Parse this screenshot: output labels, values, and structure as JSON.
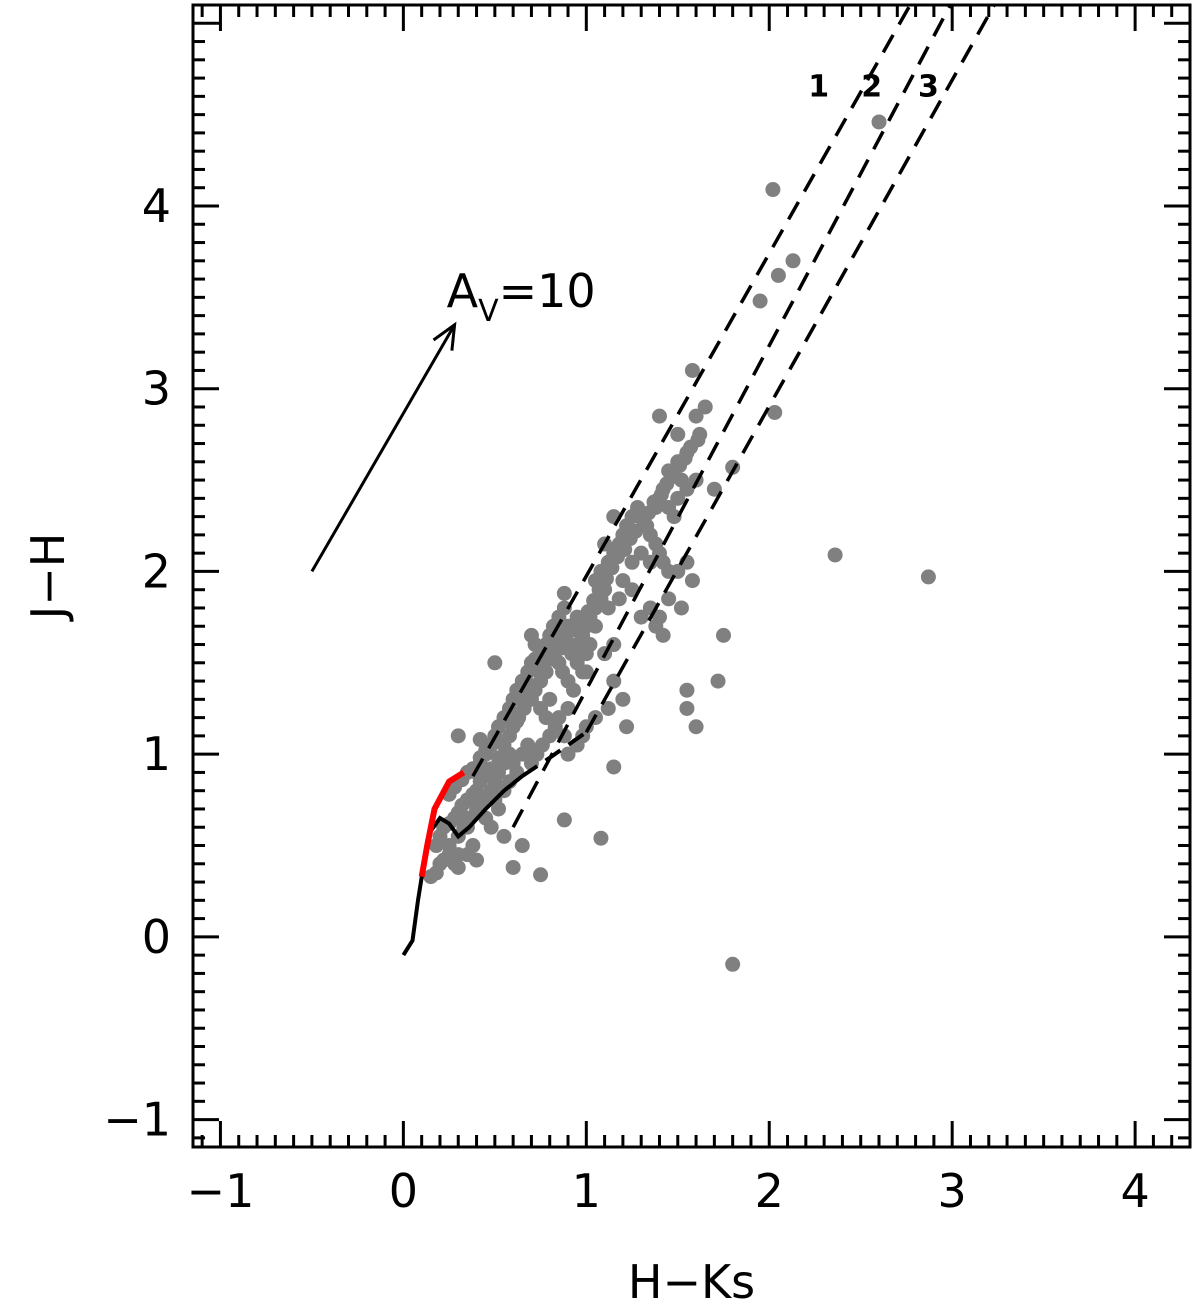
{
  "chart_data": {
    "type": "scatter",
    "title": "",
    "xlabel": "H−Ks",
    "ylabel": "J−H",
    "xlim": [
      -1.15,
      4.3
    ],
    "ylim": [
      -1.15,
      5.1
    ],
    "x_ticks": [
      -1,
      0,
      1,
      2,
      3,
      4
    ],
    "x_tick_labels": [
      "−1",
      "0",
      "1",
      "2",
      "3",
      "4"
    ],
    "y_ticks": [
      -1,
      0,
      1,
      2,
      3,
      4
    ],
    "y_tick_labels": [
      "−1",
      "0",
      "1",
      "2",
      "3",
      "4"
    ],
    "grid": false,
    "marker_color": "#808080",
    "points": [
      [
        0.15,
        0.33
      ],
      [
        0.18,
        0.35
      ],
      [
        0.2,
        0.4
      ],
      [
        0.22,
        0.42
      ],
      [
        0.25,
        0.45
      ],
      [
        0.28,
        0.4
      ],
      [
        0.3,
        0.38
      ],
      [
        0.18,
        0.5
      ],
      [
        0.2,
        0.55
      ],
      [
        0.22,
        0.6
      ],
      [
        0.25,
        0.62
      ],
      [
        0.28,
        0.65
      ],
      [
        0.3,
        0.68
      ],
      [
        0.32,
        0.72
      ],
      [
        0.35,
        0.75
      ],
      [
        0.38,
        0.78
      ],
      [
        0.4,
        0.8
      ],
      [
        0.42,
        0.85
      ],
      [
        0.45,
        0.88
      ],
      [
        0.3,
        0.55
      ],
      [
        0.33,
        0.6
      ],
      [
        0.36,
        0.65
      ],
      [
        0.4,
        0.7
      ],
      [
        0.43,
        0.73
      ],
      [
        0.46,
        0.76
      ],
      [
        0.48,
        0.8
      ],
      [
        0.5,
        0.85
      ],
      [
        0.52,
        0.9
      ],
      [
        0.55,
        0.95
      ],
      [
        0.4,
        0.9
      ],
      [
        0.42,
        0.95
      ],
      [
        0.45,
        1.0
      ],
      [
        0.48,
        1.05
      ],
      [
        0.5,
        1.1
      ],
      [
        0.52,
        1.15
      ],
      [
        0.55,
        1.2
      ],
      [
        0.58,
        1.25
      ],
      [
        0.6,
        1.3
      ],
      [
        0.62,
        1.35
      ],
      [
        0.65,
        1.4
      ],
      [
        0.68,
        1.45
      ],
      [
        0.7,
        1.5
      ],
      [
        0.72,
        1.52
      ],
      [
        0.75,
        1.55
      ],
      [
        0.78,
        1.6
      ],
      [
        0.8,
        1.65
      ],
      [
        0.82,
        1.7
      ],
      [
        0.85,
        1.75
      ],
      [
        0.88,
        1.8
      ],
      [
        0.9,
        1.7
      ],
      [
        0.55,
        1.05
      ],
      [
        0.58,
        1.1
      ],
      [
        0.6,
        1.15
      ],
      [
        0.63,
        1.2
      ],
      [
        0.66,
        1.25
      ],
      [
        0.7,
        1.3
      ],
      [
        0.72,
        1.35
      ],
      [
        0.75,
        1.25
      ],
      [
        0.78,
        1.2
      ],
      [
        0.8,
        1.3
      ],
      [
        0.65,
        1.0
      ],
      [
        0.68,
        1.05
      ],
      [
        0.7,
        0.95
      ],
      [
        0.73,
        1.0
      ],
      [
        0.76,
        1.05
      ],
      [
        0.8,
        1.1
      ],
      [
        0.83,
        1.15
      ],
      [
        0.85,
        1.2
      ],
      [
        0.88,
        1.1
      ],
      [
        0.9,
        1.25
      ],
      [
        0.6,
        0.95
      ],
      [
        0.62,
        0.9
      ],
      [
        0.5,
        0.75
      ],
      [
        0.52,
        0.7
      ],
      [
        0.55,
        0.8
      ],
      [
        0.58,
        0.85
      ],
      [
        0.45,
        0.65
      ],
      [
        0.48,
        0.6
      ],
      [
        0.38,
        0.5
      ],
      [
        0.35,
        0.45
      ],
      [
        0.92,
        1.55
      ],
      [
        0.95,
        1.6
      ],
      [
        0.98,
        1.65
      ],
      [
        1.0,
        1.7
      ],
      [
        1.02,
        1.75
      ],
      [
        1.05,
        1.8
      ],
      [
        1.08,
        1.85
      ],
      [
        1.1,
        1.9
      ],
      [
        0.95,
        1.5
      ],
      [
        0.98,
        1.45
      ],
      [
        1.0,
        1.55
      ],
      [
        1.02,
        1.6
      ],
      [
        0.85,
        1.5
      ],
      [
        0.87,
        1.45
      ],
      [
        0.9,
        1.4
      ],
      [
        0.93,
        1.35
      ],
      [
        0.75,
        1.4
      ],
      [
        0.78,
        1.45
      ],
      [
        0.72,
        1.6
      ],
      [
        0.7,
        1.65
      ],
      [
        0.88,
        1.88
      ],
      [
        0.8,
        1.6
      ],
      [
        0.85,
        1.65
      ],
      [
        0.95,
        1.75
      ],
      [
        1.05,
        1.95
      ],
      [
        1.08,
        2.0
      ],
      [
        1.12,
        2.05
      ],
      [
        1.15,
        2.1
      ],
      [
        1.18,
        2.15
      ],
      [
        1.2,
        2.2
      ],
      [
        1.22,
        2.25
      ],
      [
        1.25,
        2.3
      ],
      [
        1.28,
        2.35
      ],
      [
        1.3,
        2.3
      ],
      [
        1.33,
        2.25
      ],
      [
        1.35,
        2.2
      ],
      [
        1.38,
        2.15
      ],
      [
        1.4,
        2.1
      ],
      [
        1.42,
        2.05
      ],
      [
        1.45,
        2.0
      ],
      [
        1.1,
        2.15
      ],
      [
        1.15,
        2.3
      ],
      [
        1.25,
        2.05
      ],
      [
        1.3,
        2.1
      ],
      [
        1.35,
        2.05
      ],
      [
        1.2,
        1.95
      ],
      [
        1.25,
        1.9
      ],
      [
        1.18,
        1.85
      ],
      [
        1.12,
        1.8
      ],
      [
        1.05,
        1.7
      ],
      [
        1.45,
        2.35
      ],
      [
        1.5,
        2.4
      ],
      [
        1.52,
        2.5
      ],
      [
        1.55,
        2.45
      ],
      [
        1.48,
        2.3
      ],
      [
        1.42,
        2.45
      ],
      [
        1.4,
        2.4
      ],
      [
        1.38,
        2.35
      ],
      [
        1.45,
        2.55
      ],
      [
        1.5,
        2.6
      ],
      [
        1.4,
        2.85
      ],
      [
        1.5,
        2.75
      ],
      [
        1.6,
        2.85
      ],
      [
        1.65,
        2.9
      ],
      [
        1.62,
        2.75
      ],
      [
        1.55,
        2.65
      ],
      [
        1.6,
        2.5
      ],
      [
        1.7,
        2.45
      ],
      [
        1.45,
        1.85
      ],
      [
        1.5,
        2.0
      ],
      [
        1.55,
        2.05
      ],
      [
        1.58,
        1.95
      ],
      [
        1.52,
        1.8
      ],
      [
        1.4,
        1.75
      ],
      [
        1.38,
        1.7
      ],
      [
        1.35,
        1.8
      ],
      [
        1.3,
        1.75
      ],
      [
        1.15,
        1.6
      ],
      [
        1.1,
        1.55
      ],
      [
        1.0,
        1.45
      ],
      [
        1.42,
        1.65
      ],
      [
        1.15,
        1.4
      ],
      [
        1.2,
        1.3
      ],
      [
        1.12,
        1.25
      ],
      [
        1.05,
        1.2
      ],
      [
        1.0,
        1.15
      ],
      [
        0.98,
        1.1
      ],
      [
        0.95,
        1.05
      ],
      [
        0.9,
        1.0
      ],
      [
        1.22,
        1.15
      ],
      [
        1.55,
        1.35
      ],
      [
        1.55,
        1.25
      ],
      [
        1.6,
        1.15
      ],
      [
        1.72,
        1.4
      ],
      [
        1.75,
        1.65
      ],
      [
        1.58,
        3.1
      ],
      [
        1.8,
        2.57
      ],
      [
        1.95,
        3.48
      ],
      [
        2.05,
        3.62
      ],
      [
        2.13,
        3.7
      ],
      [
        2.02,
        4.09
      ],
      [
        2.6,
        4.46
      ],
      [
        2.03,
        2.87
      ],
      [
        2.36,
        2.09
      ],
      [
        2.87,
        1.97
      ],
      [
        1.8,
        -0.15
      ],
      [
        1.08,
        0.54
      ],
      [
        0.88,
        0.64
      ],
      [
        0.75,
        0.34
      ],
      [
        1.15,
        0.93
      ],
      [
        0.42,
        1.08
      ],
      [
        0.5,
        1.5
      ],
      [
        0.3,
        1.1
      ],
      [
        0.6,
        0.38
      ],
      [
        0.65,
        0.5
      ],
      [
        0.55,
        0.55
      ],
      [
        0.4,
        0.42
      ],
      [
        0.3,
        0.45
      ],
      [
        0.25,
        0.5
      ],
      [
        0.35,
        0.6
      ],
      [
        0.25,
        0.78
      ],
      [
        0.28,
        0.82
      ],
      [
        0.32,
        0.86
      ],
      [
        0.35,
        0.9
      ],
      [
        0.38,
        0.92
      ],
      [
        0.42,
        0.98
      ],
      [
        0.45,
        1.02
      ],
      [
        0.48,
        0.92
      ],
      [
        0.52,
        0.98
      ],
      [
        0.58,
        1.0
      ],
      [
        0.62,
        1.18
      ],
      [
        0.66,
        1.32
      ],
      [
        0.69,
        1.38
      ],
      [
        0.73,
        1.46
      ],
      [
        0.76,
        1.5
      ],
      [
        0.79,
        1.56
      ],
      [
        0.82,
        1.52
      ],
      [
        0.86,
        1.58
      ],
      [
        0.89,
        1.62
      ],
      [
        0.93,
        1.68
      ],
      [
        0.97,
        1.72
      ],
      [
        1.01,
        1.78
      ],
      [
        1.04,
        1.84
      ],
      [
        1.07,
        1.9
      ],
      [
        1.11,
        1.96
      ],
      [
        1.14,
        2.02
      ],
      [
        1.17,
        2.08
      ],
      [
        1.21,
        2.12
      ],
      [
        1.24,
        2.18
      ],
      [
        1.27,
        2.22
      ],
      [
        1.31,
        2.28
      ],
      [
        1.34,
        2.32
      ],
      [
        1.37,
        2.38
      ],
      [
        1.41,
        2.42
      ],
      [
        1.44,
        2.48
      ],
      [
        1.47,
        2.52
      ],
      [
        1.51,
        2.58
      ],
      [
        1.54,
        2.62
      ],
      [
        1.57,
        2.68
      ],
      [
        1.61,
        2.72
      ]
    ],
    "red_locus": [
      [
        0.1,
        0.33
      ],
      [
        0.13,
        0.5
      ],
      [
        0.17,
        0.7
      ],
      [
        0.25,
        0.85
      ],
      [
        0.33,
        0.9
      ]
    ],
    "black_locus": [
      [
        0.0,
        -0.1
      ],
      [
        0.05,
        -0.02
      ],
      [
        0.08,
        0.2
      ],
      [
        0.12,
        0.45
      ],
      [
        0.15,
        0.58
      ],
      [
        0.2,
        0.65
      ],
      [
        0.25,
        0.62
      ],
      [
        0.3,
        0.55
      ],
      [
        0.36,
        0.6
      ],
      [
        0.45,
        0.7
      ],
      [
        0.55,
        0.8
      ],
      [
        0.65,
        0.88
      ]
    ],
    "dashed_locus": [
      [
        0.65,
        0.88
      ],
      [
        0.8,
        0.98
      ],
      [
        1.0,
        1.12
      ]
    ],
    "reddening_bands": [
      {
        "label": "1",
        "x0": 0.38,
        "y0": 0.88,
        "x1": 2.77,
        "y1": 5.1
      },
      {
        "label": "2",
        "x0": 0.6,
        "y0": 0.6,
        "x1": 2.99,
        "y1": 5.1
      },
      {
        "label": "3",
        "x0": 1.0,
        "y0": 1.12,
        "x1": 3.23,
        "y1": 5.1
      }
    ],
    "band_label_positions": [
      [
        2.27,
        4.6
      ],
      [
        2.56,
        4.6
      ],
      [
        2.87,
        4.6
      ]
    ],
    "reddening_vector": {
      "x0": -0.5,
      "y0": 2.0,
      "x1": 0.28,
      "y1": 3.35,
      "label_main": "A",
      "label_sub": "V",
      "label_value": "=10"
    }
  }
}
